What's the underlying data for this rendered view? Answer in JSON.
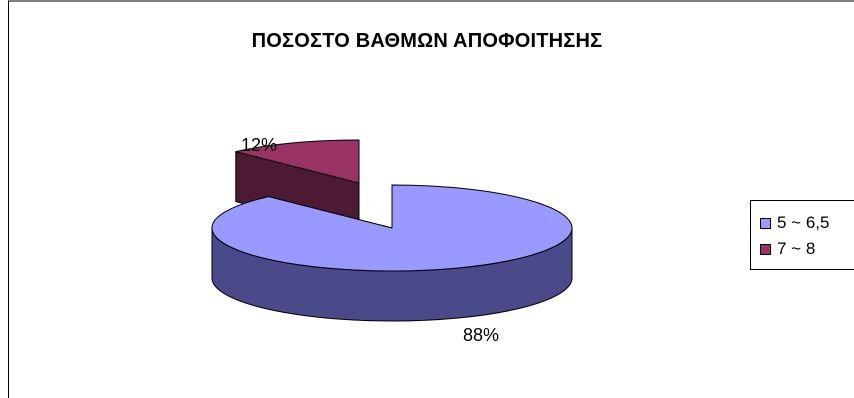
{
  "chart_data": {
    "type": "pie",
    "title": "ΠΟΣΟΣΤΟ ΒΑΘΜΩΝ ΑΠΟΦΟΙΤΗΣΗΣ",
    "categories": [
      "5 ~ 6,5",
      "7 ~ 8"
    ],
    "values": [
      88,
      12
    ],
    "data_labels": [
      "88%",
      "12%"
    ],
    "colors": [
      "#9999ff",
      "#993366"
    ],
    "side_colors": [
      "#4a4a8a",
      "#4d1a33"
    ],
    "legend_position": "right",
    "style": "3d-exploded"
  }
}
